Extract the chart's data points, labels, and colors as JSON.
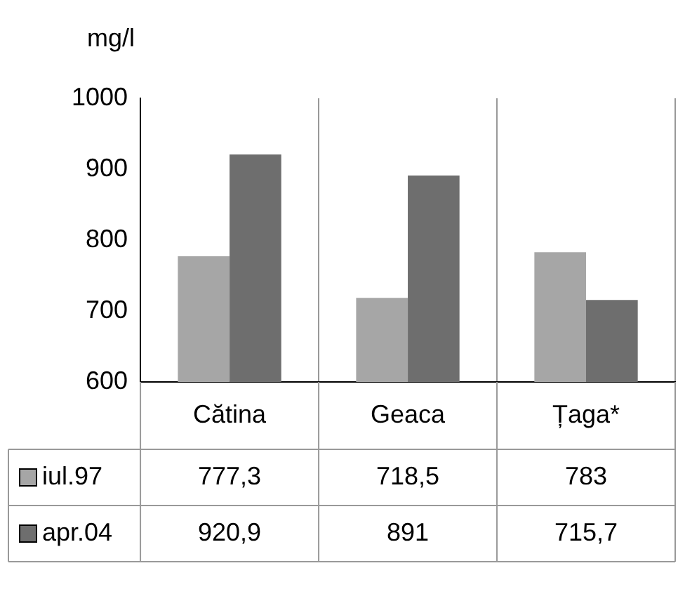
{
  "chart_data": {
    "type": "bar",
    "ylabel": "mg/l",
    "categories": [
      "Cătina",
      "Geaca",
      "Țaga*"
    ],
    "series": [
      {
        "name": "iul.97",
        "color": "#a6a6a6",
        "values": [
          777.3,
          718.5,
          783
        ],
        "value_labels": [
          "777,3",
          "718,5",
          "783"
        ]
      },
      {
        "name": "apr.04",
        "color": "#6e6e6e",
        "values": [
          920.9,
          891,
          715.7
        ],
        "value_labels": [
          "920,9",
          "891",
          "715,7"
        ]
      }
    ],
    "ylim": [
      600,
      1000
    ],
    "yticks": [
      600,
      700,
      800,
      900,
      1000
    ],
    "grid": "x",
    "legend": "bottom"
  }
}
